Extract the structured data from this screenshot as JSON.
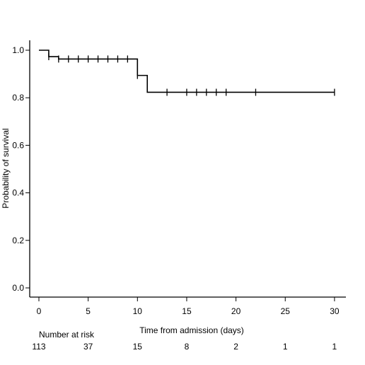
{
  "chart_data": {
    "type": "line",
    "subtype": "kaplan-meier",
    "title": "",
    "xlabel": "Time from admission (days)",
    "ylabel": "Probability of survival",
    "xlim": [
      0,
      31
    ],
    "ylim": [
      -0.04,
      1.04
    ],
    "x_ticks": [
      0,
      5,
      10,
      15,
      20,
      25,
      30
    ],
    "y_ticks": [
      0.0,
      0.2,
      0.4,
      0.6,
      0.8,
      1.0
    ],
    "x_tick_labels": [
      "0",
      "5",
      "10",
      "15",
      "20",
      "25",
      "30"
    ],
    "y_tick_labels": [
      "0.0",
      "0.2",
      "0.4",
      "0.6",
      "0.8",
      "1.0"
    ],
    "grid": false,
    "series": [
      {
        "color": "#000000",
        "steps": [
          {
            "x": 0,
            "y": 1.0
          },
          {
            "x": 1,
            "y": 0.973
          },
          {
            "x": 2,
            "y": 0.963
          },
          {
            "x": 10,
            "y": 0.894
          },
          {
            "x": 11,
            "y": 0.823
          },
          {
            "x": 30,
            "y": 0.823
          }
        ],
        "censored": [
          {
            "x": 1,
            "y": 0.973
          },
          {
            "x": 2,
            "y": 0.963
          },
          {
            "x": 3,
            "y": 0.963
          },
          {
            "x": 4,
            "y": 0.963
          },
          {
            "x": 5,
            "y": 0.963
          },
          {
            "x": 6,
            "y": 0.963
          },
          {
            "x": 7,
            "y": 0.963
          },
          {
            "x": 8,
            "y": 0.963
          },
          {
            "x": 9,
            "y": 0.963
          },
          {
            "x": 10,
            "y": 0.894
          },
          {
            "x": 13,
            "y": 0.823
          },
          {
            "x": 15,
            "y": 0.823
          },
          {
            "x": 16,
            "y": 0.823
          },
          {
            "x": 17,
            "y": 0.823
          },
          {
            "x": 18,
            "y": 0.823
          },
          {
            "x": 19,
            "y": 0.823
          },
          {
            "x": 22,
            "y": 0.823
          },
          {
            "x": 30,
            "y": 0.823
          }
        ]
      }
    ],
    "risk_table": {
      "label": "Number at risk",
      "times": [
        0,
        5,
        10,
        15,
        20,
        25,
        30
      ],
      "counts": [
        "113",
        "37",
        "15",
        "8",
        "2",
        "1",
        "1"
      ]
    }
  }
}
